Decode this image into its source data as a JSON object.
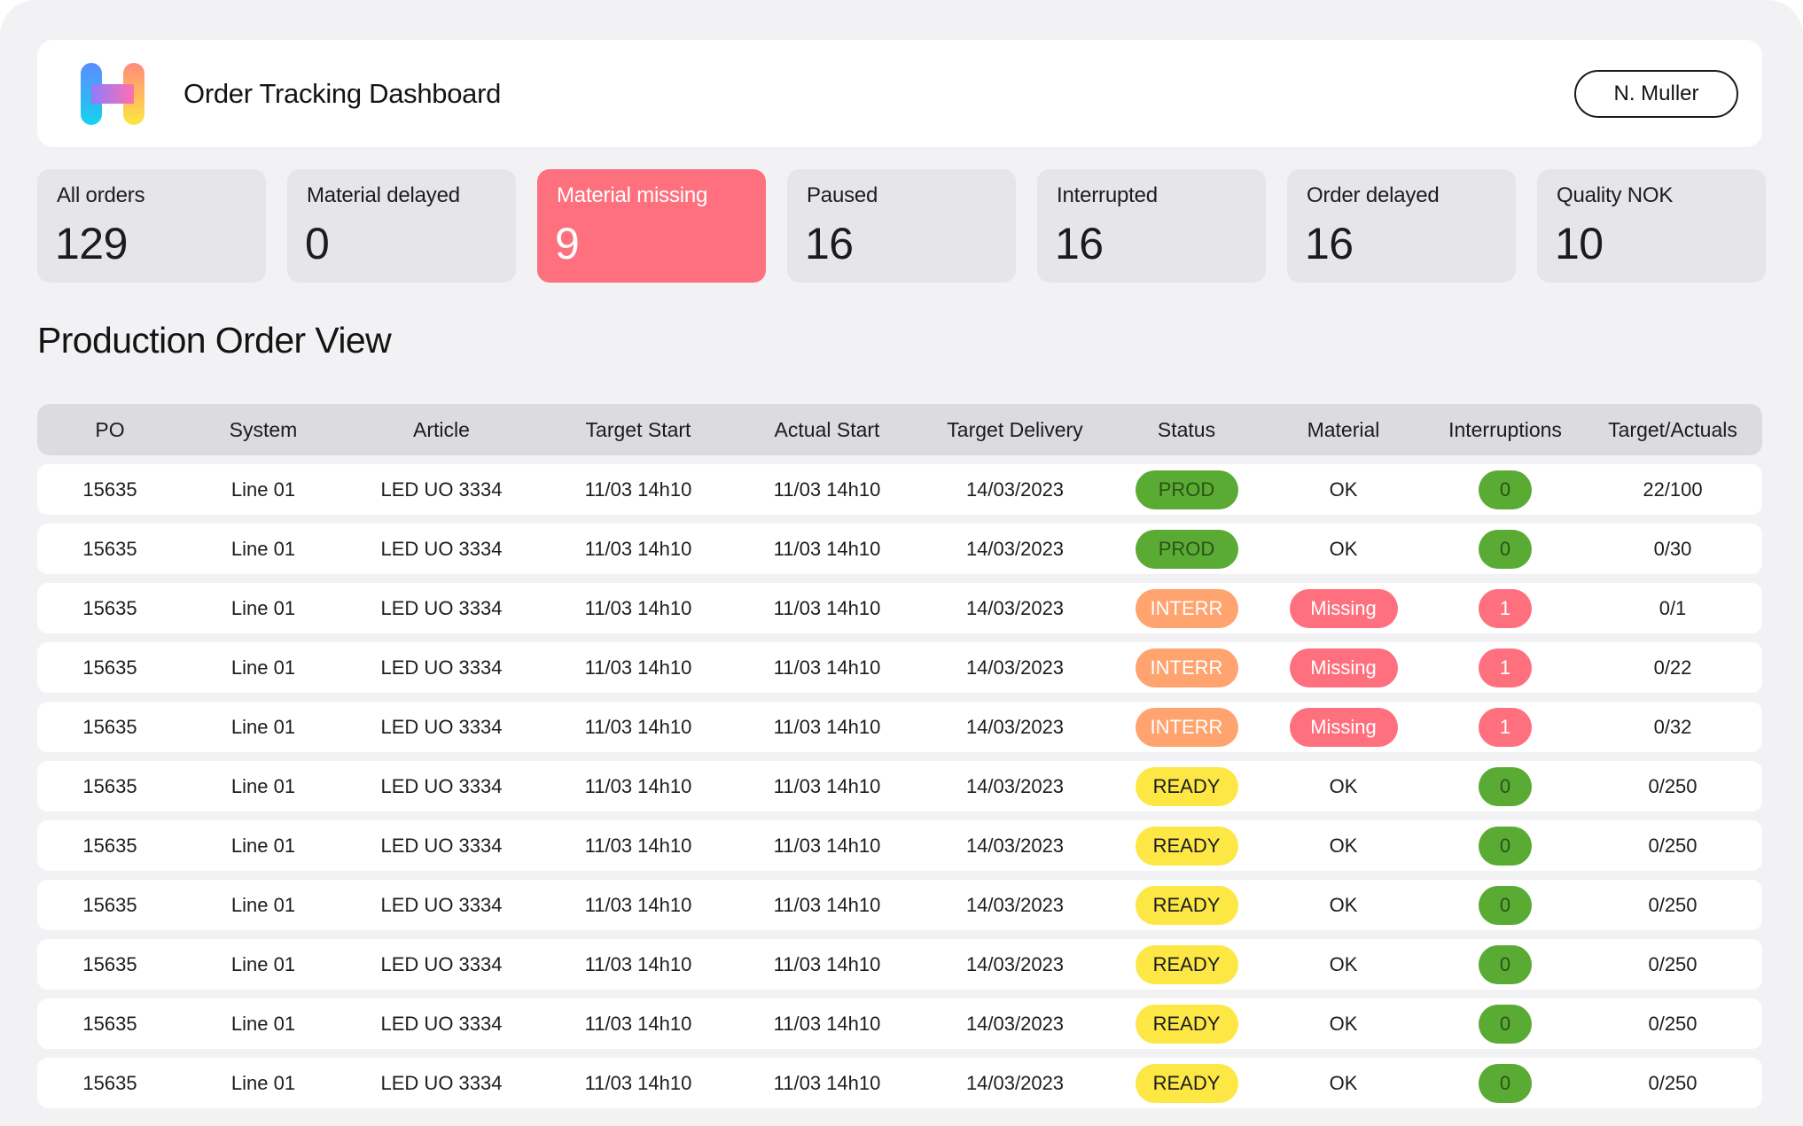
{
  "header": {
    "app_title": "Order Tracking Dashboard",
    "user_name": "N. Muller"
  },
  "kpis": [
    {
      "label": "All orders",
      "value": "129",
      "active": false
    },
    {
      "label": "Material delayed",
      "value": "0",
      "active": false
    },
    {
      "label": "Material missing",
      "value": "9",
      "active": true
    },
    {
      "label": "Paused",
      "value": "16",
      "active": false
    },
    {
      "label": "Interrupted",
      "value": "16",
      "active": false
    },
    {
      "label": "Order delayed",
      "value": "16",
      "active": false
    },
    {
      "label": "Quality NOK",
      "value": "10",
      "active": false
    }
  ],
  "section_title": "Production Order View",
  "table": {
    "columns": [
      "PO",
      "System",
      "Article",
      "Target Start",
      "Actual Start",
      "Target Delivery",
      "Status",
      "Material",
      "Interruptions",
      "Target/Actuals"
    ],
    "rows": [
      {
        "po": "15635",
        "system": "Line 01",
        "article": "LED UO 3334",
        "target_start": "11/03 14h10",
        "actual_start": "11/03 14h10",
        "target_delivery": "14/03/2023",
        "status": "PROD",
        "material": "OK",
        "interruptions": "0",
        "target_actuals": "22/100"
      },
      {
        "po": "15635",
        "system": "Line 01",
        "article": "LED UO 3334",
        "target_start": "11/03 14h10",
        "actual_start": "11/03 14h10",
        "target_delivery": "14/03/2023",
        "status": "PROD",
        "material": "OK",
        "interruptions": "0",
        "target_actuals": "0/30"
      },
      {
        "po": "15635",
        "system": "Line 01",
        "article": "LED UO 3334",
        "target_start": "11/03 14h10",
        "actual_start": "11/03 14h10",
        "target_delivery": "14/03/2023",
        "status": "INTERR",
        "material": "Missing",
        "interruptions": "1",
        "target_actuals": "0/1"
      },
      {
        "po": "15635",
        "system": "Line 01",
        "article": "LED UO 3334",
        "target_start": "11/03 14h10",
        "actual_start": "11/03 14h10",
        "target_delivery": "14/03/2023",
        "status": "INTERR",
        "material": "Missing",
        "interruptions": "1",
        "target_actuals": "0/22"
      },
      {
        "po": "15635",
        "system": "Line 01",
        "article": "LED UO 3334",
        "target_start": "11/03 14h10",
        "actual_start": "11/03 14h10",
        "target_delivery": "14/03/2023",
        "status": "INTERR",
        "material": "Missing",
        "interruptions": "1",
        "target_actuals": "0/32"
      },
      {
        "po": "15635",
        "system": "Line 01",
        "article": "LED UO 3334",
        "target_start": "11/03 14h10",
        "actual_start": "11/03 14h10",
        "target_delivery": "14/03/2023",
        "status": "READY",
        "material": "OK",
        "interruptions": "0",
        "target_actuals": "0/250"
      },
      {
        "po": "15635",
        "system": "Line 01",
        "article": "LED UO 3334",
        "target_start": "11/03 14h10",
        "actual_start": "11/03 14h10",
        "target_delivery": "14/03/2023",
        "status": "READY",
        "material": "OK",
        "interruptions": "0",
        "target_actuals": "0/250"
      },
      {
        "po": "15635",
        "system": "Line 01",
        "article": "LED UO 3334",
        "target_start": "11/03 14h10",
        "actual_start": "11/03 14h10",
        "target_delivery": "14/03/2023",
        "status": "READY",
        "material": "OK",
        "interruptions": "0",
        "target_actuals": "0/250"
      },
      {
        "po": "15635",
        "system": "Line 01",
        "article": "LED UO 3334",
        "target_start": "11/03 14h10",
        "actual_start": "11/03 14h10",
        "target_delivery": "14/03/2023",
        "status": "READY",
        "material": "OK",
        "interruptions": "0",
        "target_actuals": "0/250"
      },
      {
        "po": "15635",
        "system": "Line 01",
        "article": "LED UO 3334",
        "target_start": "11/03 14h10",
        "actual_start": "11/03 14h10",
        "target_delivery": "14/03/2023",
        "status": "READY",
        "material": "OK",
        "interruptions": "0",
        "target_actuals": "0/250"
      },
      {
        "po": "15635",
        "system": "Line 01",
        "article": "LED UO 3334",
        "target_start": "11/03 14h10",
        "actual_start": "11/03 14h10",
        "target_delivery": "14/03/2023",
        "status": "READY",
        "material": "OK",
        "interruptions": "0",
        "target_actuals": "0/250"
      }
    ]
  },
  "colors": {
    "accent_missing": "#fe707e",
    "status_prod": "#5aab34",
    "status_interr": "#ffa36f",
    "status_ready": "#fde744"
  },
  "icons": {
    "logo": "app-logo-icon"
  }
}
